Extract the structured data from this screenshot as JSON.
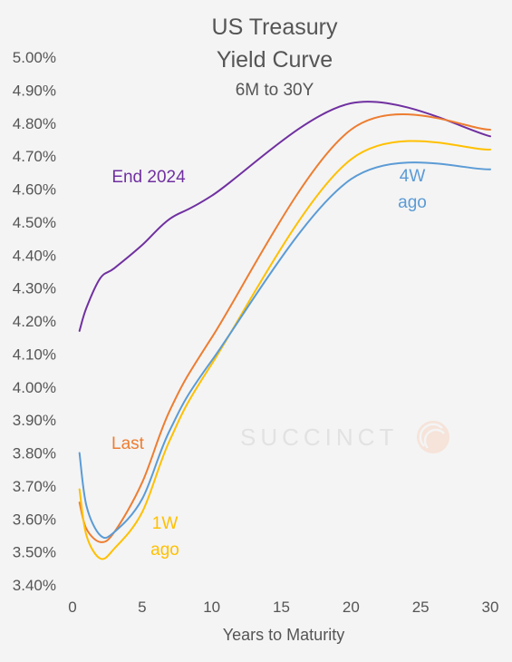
{
  "chart_data": {
    "type": "line",
    "title_lines": [
      "US Treasury",
      "Yield Curve"
    ],
    "subtitle": "6M to 30Y",
    "xlabel": "Years to Maturity",
    "ylabel": "",
    "xlim": [
      0,
      30
    ],
    "ylim": [
      3.4,
      5.0
    ],
    "x_ticks": [
      "0",
      "5",
      "10",
      "15",
      "20",
      "25",
      "30"
    ],
    "y_ticks": [
      "3.40%",
      "3.50%",
      "3.60%",
      "3.70%",
      "3.80%",
      "3.90%",
      "4.00%",
      "4.10%",
      "4.20%",
      "4.30%",
      "4.40%",
      "4.50%",
      "4.60%",
      "4.70%",
      "4.80%",
      "4.90%",
      "5.00%"
    ],
    "grid": false,
    "watermark": "SUCCINCT",
    "series": [
      {
        "name": "End 2024",
        "label_lines": [
          "End 2024"
        ],
        "color": "#7030a0",
        "x": [
          0.5,
          1,
          2,
          3,
          5,
          7,
          10,
          20,
          30
        ],
        "y": [
          4.17,
          4.24,
          4.33,
          4.36,
          4.43,
          4.51,
          4.58,
          4.86,
          4.76
        ]
      },
      {
        "name": "Last",
        "label_lines": [
          "Last"
        ],
        "color": "#ed7d31",
        "x": [
          0.5,
          1,
          2,
          3,
          5,
          7,
          10,
          20,
          30
        ],
        "y": [
          3.65,
          3.57,
          3.53,
          3.56,
          3.71,
          3.93,
          4.15,
          4.78,
          4.78
        ]
      },
      {
        "name": "1W ago",
        "label_lines": [
          "1W",
          "ago"
        ],
        "color": "#ffc000",
        "x": [
          0.5,
          1,
          2,
          3,
          5,
          7,
          10,
          20,
          30
        ],
        "y": [
          3.69,
          3.55,
          3.48,
          3.51,
          3.62,
          3.84,
          4.07,
          4.69,
          4.72
        ]
      },
      {
        "name": "4W ago",
        "label_lines": [
          "4W",
          "ago"
        ],
        "color": "#5b9bd5",
        "x": [
          0.5,
          1,
          2,
          3,
          5,
          7,
          10,
          20,
          30
        ],
        "y": [
          3.8,
          3.64,
          3.55,
          3.56,
          3.66,
          3.87,
          4.08,
          4.63,
          4.66
        ]
      }
    ]
  }
}
